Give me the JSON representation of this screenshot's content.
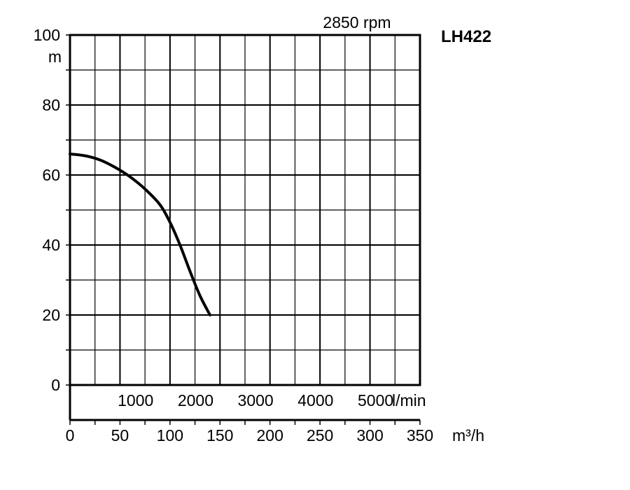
{
  "chart_data": {
    "type": "line",
    "title": "LH422",
    "subtitle": "2850 rpm",
    "ylabel": "m",
    "xlabel": "m³/h",
    "secondary_xlabel": "l/min",
    "xlim": [
      0,
      350
    ],
    "ylim": [
      0,
      100
    ],
    "x_ticks": [
      "0",
      "50",
      "100",
      "150",
      "200",
      "250",
      "300",
      "350"
    ],
    "x_tick_values": [
      0,
      50,
      100,
      150,
      200,
      250,
      300,
      350
    ],
    "y_ticks": [
      "0",
      "20",
      "40",
      "60",
      "80",
      "100"
    ],
    "y_tick_values": [
      0,
      20,
      40,
      60,
      80,
      100
    ],
    "secondary_x_ticks": [
      "1000",
      "2000",
      "3000",
      "4000",
      "5000"
    ],
    "secondary_x_tick_values": [
      1000,
      2000,
      3000,
      4000,
      5000
    ],
    "grid": true,
    "series": [
      {
        "x": [
          0,
          15,
          30,
          45,
          60,
          75,
          90,
          100,
          110,
          120,
          130,
          140
        ],
        "y": [
          66,
          65.5,
          64.3,
          62.2,
          59.5,
          56,
          51.5,
          46.5,
          40,
          32.5,
          25.5,
          20
        ]
      }
    ]
  }
}
